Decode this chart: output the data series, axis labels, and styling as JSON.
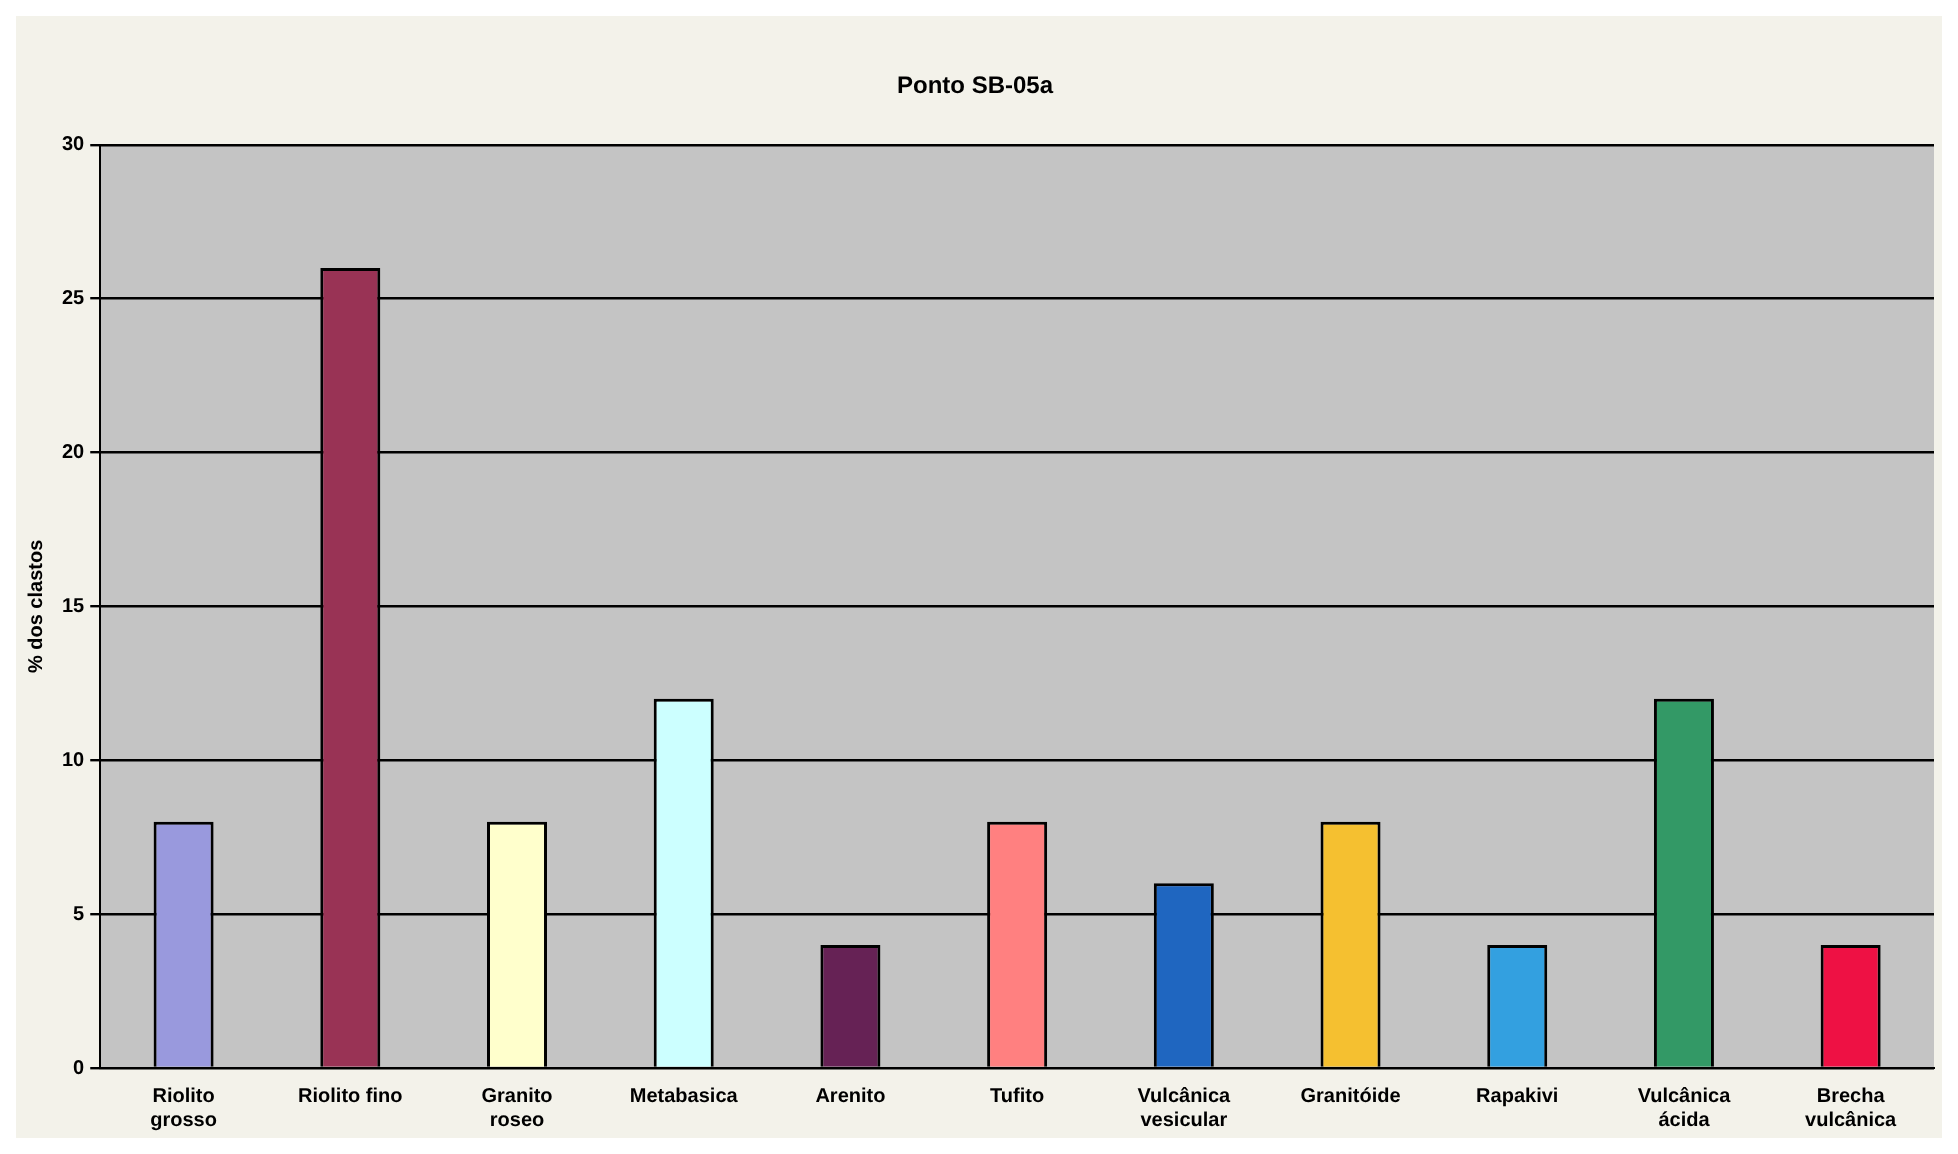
{
  "chart_data": {
    "type": "bar",
    "title": "Ponto SB-05a",
    "ylabel": "% dos clastos",
    "categories": [
      "Riolito\ngrosso",
      "Riolito fino",
      "Granito\nroseo",
      "Metabasica",
      "Arenito",
      "Tufito",
      "Vulcânica\nvesicular",
      "Granitóide",
      "Rapakivi",
      "Vulcânica\nácida",
      "Brecha\nvulcânica"
    ],
    "values": [
      8,
      26,
      8,
      12,
      4,
      8,
      6,
      8,
      4,
      12,
      4
    ],
    "colors": [
      "#9999dd",
      "#993355",
      "#ffffcc",
      "#ccffff",
      "#662255",
      "#ff8080",
      "#1f66c0",
      "#f5c030",
      "#33a0e0",
      "#339966",
      "#ee1144"
    ],
    "ylim": [
      0,
      30
    ],
    "yticks": [
      0,
      5,
      10,
      15,
      20,
      25,
      30
    ],
    "grid": "y",
    "legend": false
  }
}
